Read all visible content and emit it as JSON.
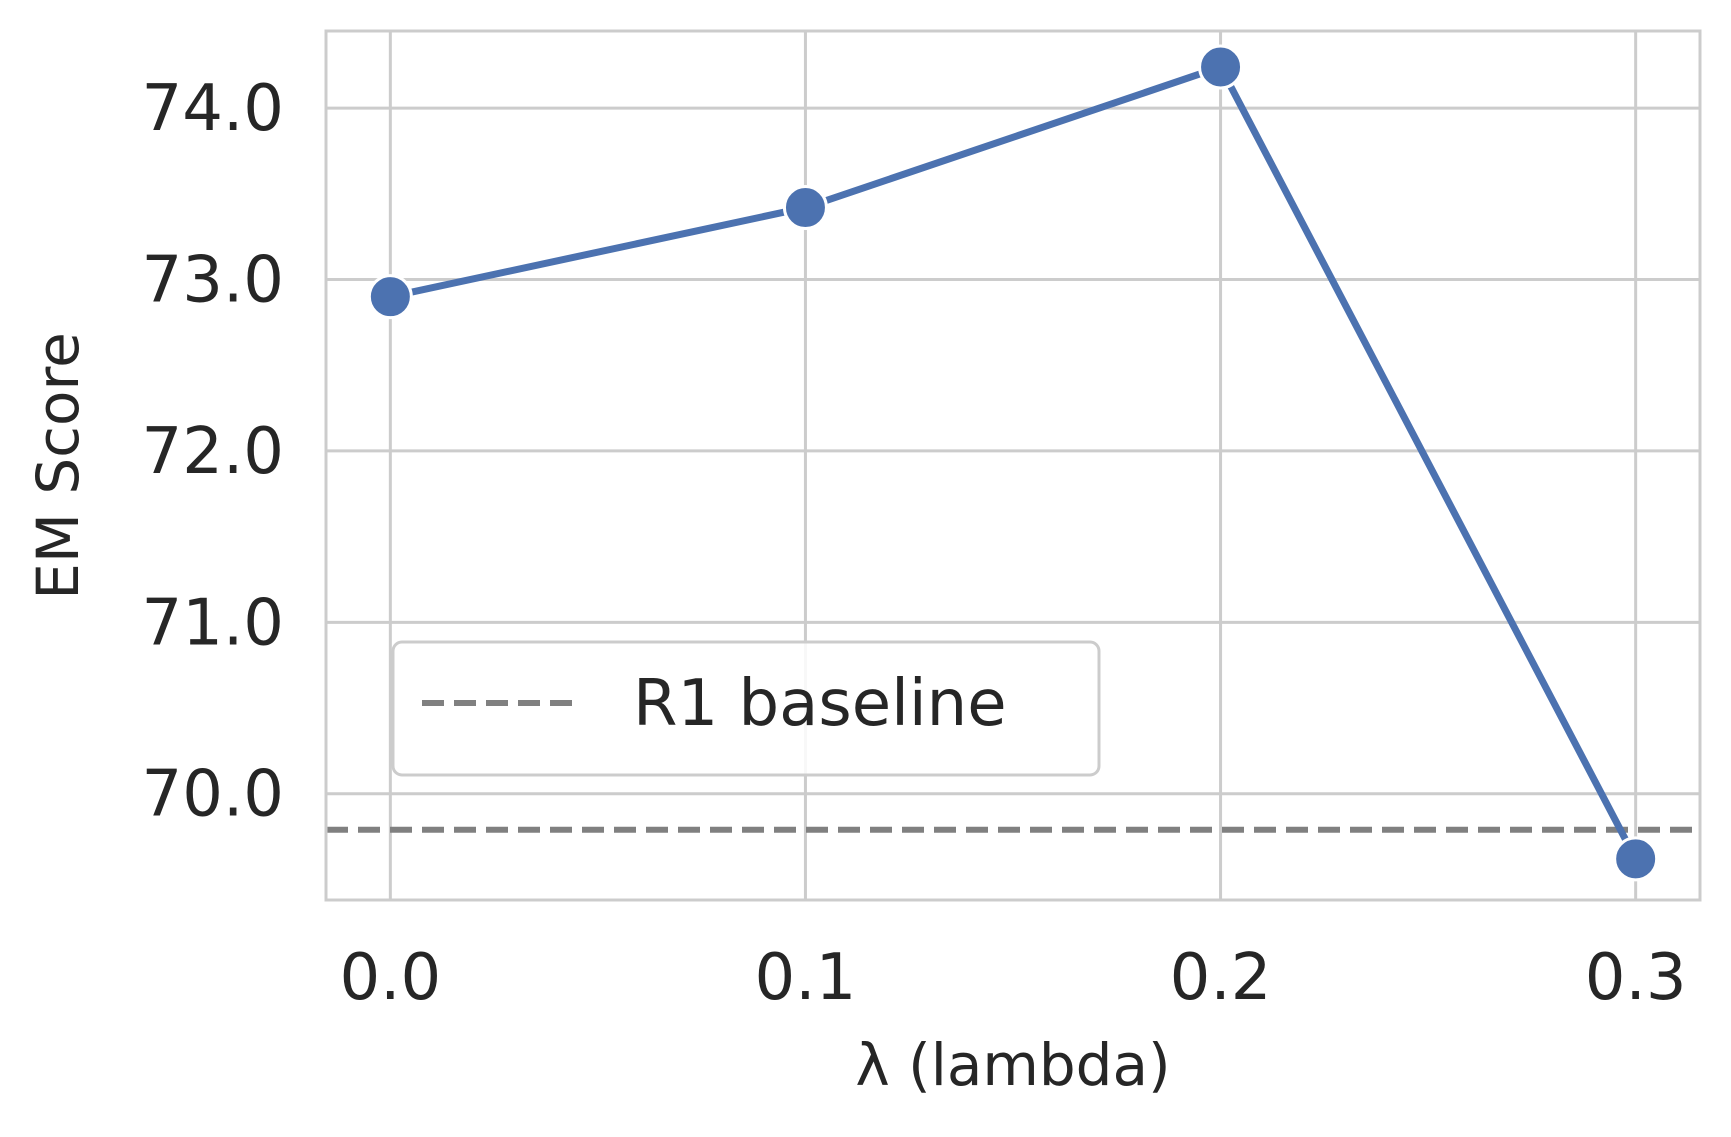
{
  "chart_data": {
    "type": "line",
    "title": "",
    "xlabel": "λ (lambda)",
    "ylabel": "EM Score",
    "x": [
      0.0,
      0.1,
      0.2,
      0.3
    ],
    "x_tick_labels": [
      "0.0",
      "0.1",
      "0.2",
      "0.3"
    ],
    "xlim": [
      -0.0155,
      0.3155
    ],
    "ylim": [
      69.38,
      74.45
    ],
    "y_ticks": [
      70.0,
      71.0,
      72.0,
      73.0,
      74.0
    ],
    "y_tick_labels": [
      "70.0",
      "71.0",
      "72.0",
      "73.0",
      "74.0"
    ],
    "series": [
      {
        "values": [
          72.9,
          73.42,
          74.24,
          69.62
        ],
        "color": "#4c72b0",
        "marker": "circle"
      }
    ],
    "reference_lines": [
      {
        "label": "R1 baseline",
        "y": 69.79,
        "color": "#808080",
        "style": "dashed"
      }
    ],
    "legend": {
      "placement": "lower-left",
      "entries": [
        "R1 baseline"
      ]
    },
    "grid": true,
    "style": {
      "grid_color": "#cccccc",
      "axes_edge_color": "#cccccc",
      "text_color": "#262626"
    }
  }
}
